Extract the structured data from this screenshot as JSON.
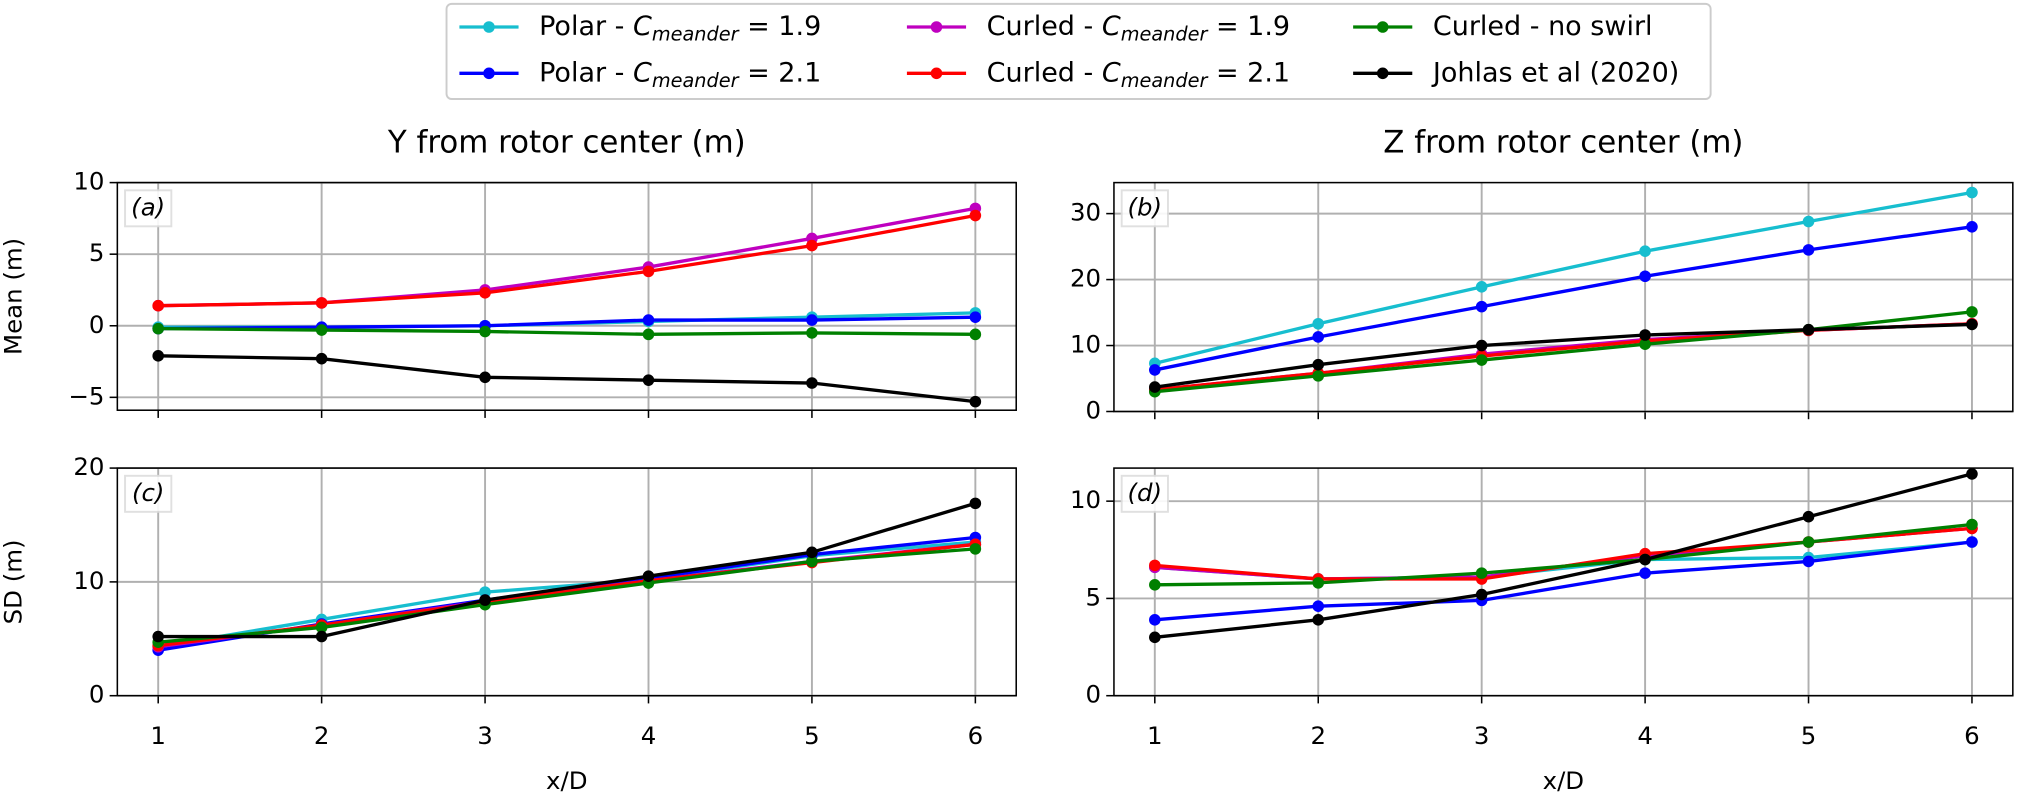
{
  "chart_data": [
    {
      "type": "line",
      "title": "Y from rotor center (m)",
      "ylabel": "Mean (m)",
      "annotation": "(a)",
      "x": [
        1,
        2,
        3,
        4,
        5,
        6
      ],
      "xlim": [
        0.75,
        6.25
      ],
      "xticks": [
        1,
        2,
        3,
        4,
        5,
        6
      ],
      "ylim": [
        -5.9,
        10
      ],
      "yticks": [
        {
          "value": -5,
          "label": "−5"
        },
        0,
        5,
        10
      ],
      "grid": true,
      "series": [
        {
          "name": "Polar - C_meander = 1.9",
          "color": "#17becf",
          "values": [
            -0.1,
            -0.1,
            0.0,
            0.3,
            0.6,
            0.9
          ]
        },
        {
          "name": "Polar - C_meander = 2.1",
          "color": "#0000ff",
          "values": [
            -0.2,
            -0.1,
            0.0,
            0.4,
            0.4,
            0.6
          ]
        },
        {
          "name": "Curled - C_meander = 1.9",
          "color": "#bf00bf",
          "values": [
            1.4,
            1.6,
            2.5,
            4.1,
            6.1,
            8.2
          ]
        },
        {
          "name": "Curled - C_meander = 2.1",
          "color": "#ff0000",
          "values": [
            1.4,
            1.6,
            2.3,
            3.8,
            5.6,
            7.7
          ]
        },
        {
          "name": "Curled - no swirl",
          "color": "#008000",
          "values": [
            -0.2,
            -0.3,
            -0.4,
            -0.6,
            -0.5,
            -0.6
          ]
        },
        {
          "name": "Johlas et al (2020)",
          "color": "#000000",
          "values": [
            -2.1,
            -2.3,
            -3.6,
            -3.8,
            -4.0,
            -5.3
          ]
        }
      ]
    },
    {
      "type": "line",
      "title": "Z from rotor center (m)",
      "annotation": "(b)",
      "x": [
        1,
        2,
        3,
        4,
        5,
        6
      ],
      "xlim": [
        0.75,
        6.25
      ],
      "xticks": [
        1,
        2,
        3,
        4,
        5,
        6
      ],
      "ylim": [
        0,
        34.7
      ],
      "yticks": [
        0,
        10,
        20,
        30
      ],
      "grid": true,
      "series": [
        {
          "color": "#17becf",
          "values": [
            7.3,
            13.3,
            18.9,
            24.3,
            28.8,
            33.2
          ]
        },
        {
          "color": "#0000ff",
          "values": [
            6.3,
            11.3,
            15.9,
            20.5,
            24.5,
            28.0
          ]
        },
        {
          "color": "#bf00bf",
          "values": [
            3.3,
            5.8,
            8.7,
            10.9,
            12.3,
            13.3
          ]
        },
        {
          "color": "#ff0000",
          "values": [
            3.3,
            5.8,
            8.4,
            10.7,
            12.3,
            13.3
          ]
        },
        {
          "color": "#008000",
          "values": [
            3.0,
            5.4,
            7.8,
            10.2,
            12.4,
            15.1
          ]
        },
        {
          "color": "#000000",
          "values": [
            3.7,
            7.1,
            10.0,
            11.6,
            12.4,
            13.2
          ]
        }
      ]
    },
    {
      "type": "line",
      "ylabel": "SD (m)",
      "xlabel": "x/D",
      "annotation": "(c)",
      "x": [
        1,
        2,
        3,
        4,
        5,
        6
      ],
      "xlim": [
        0.75,
        6.25
      ],
      "xticks": [
        1,
        2,
        3,
        4,
        5,
        6
      ],
      "ylim": [
        0,
        20
      ],
      "yticks": [
        0,
        10,
        20
      ],
      "grid": true,
      "series": [
        {
          "color": "#17becf",
          "values": [
            4.3,
            6.7,
            9.1,
            10.2,
            12.3,
            13.5
          ]
        },
        {
          "color": "#0000ff",
          "values": [
            4.0,
            6.3,
            8.4,
            10.3,
            12.4,
            13.9
          ]
        },
        {
          "color": "#bf00bf",
          "values": [
            4.3,
            6.2,
            8.3,
            10.1,
            11.8,
            13.3
          ]
        },
        {
          "color": "#ff0000",
          "values": [
            4.4,
            6.2,
            8.2,
            10.1,
            11.7,
            13.3
          ]
        },
        {
          "color": "#008000",
          "values": [
            4.7,
            6.0,
            8.0,
            9.9,
            11.8,
            12.9
          ]
        },
        {
          "color": "#000000",
          "values": [
            5.2,
            5.2,
            8.4,
            10.5,
            12.6,
            16.9
          ]
        }
      ]
    },
    {
      "type": "line",
      "xlabel": "x/D",
      "annotation": "(d)",
      "x": [
        1,
        2,
        3,
        4,
        5,
        6
      ],
      "xlim": [
        0.75,
        6.25
      ],
      "xticks": [
        1,
        2,
        3,
        4,
        5,
        6
      ],
      "ylim": [
        0,
        11.7
      ],
      "yticks": [
        0,
        5,
        10
      ],
      "grid": true,
      "series": [
        {
          "color": "#17becf",
          "values": [
            6.6,
            6.0,
            6.1,
            7.0,
            7.1,
            7.9
          ]
        },
        {
          "color": "#0000ff",
          "values": [
            3.9,
            4.6,
            4.9,
            6.3,
            6.9,
            7.9
          ]
        },
        {
          "color": "#bf00bf",
          "values": [
            6.6,
            6.0,
            6.1,
            7.2,
            7.9,
            8.6
          ]
        },
        {
          "color": "#ff0000",
          "values": [
            6.7,
            6.0,
            6.0,
            7.3,
            7.9,
            8.6
          ]
        },
        {
          "color": "#008000",
          "values": [
            5.7,
            5.8,
            6.3,
            7.0,
            7.9,
            8.8
          ]
        },
        {
          "color": "#000000",
          "values": [
            3.0,
            3.9,
            5.2,
            7.0,
            9.2,
            11.4
          ]
        }
      ]
    }
  ]
}
